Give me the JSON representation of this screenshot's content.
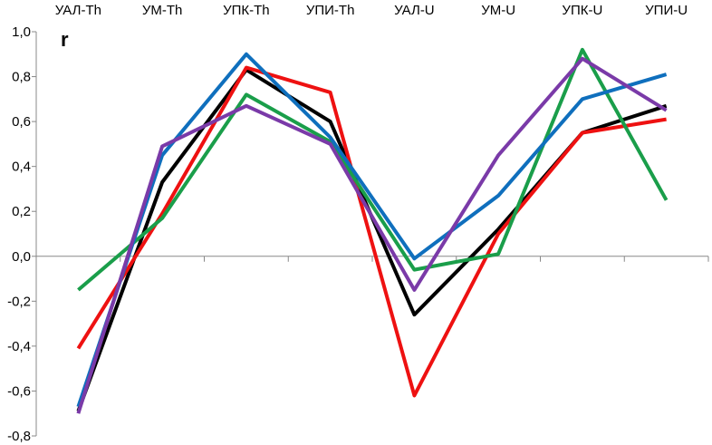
{
  "chart_data": {
    "type": "line",
    "title": "",
    "ylabel": "r",
    "xlabel": "",
    "ylim": [
      -0.8,
      1.0
    ],
    "yticks": [
      1.0,
      0.8,
      0.6,
      0.4,
      0.2,
      0.0,
      -0.2,
      -0.4,
      -0.6,
      -0.8
    ],
    "ytick_labels": [
      "1,0",
      "0,8",
      "0,6",
      "0,4",
      "0,2",
      "0,0",
      "-0,2",
      "-0,4",
      "-0,6",
      "-0,8"
    ],
    "x_axis_position": "top",
    "categories": [
      "УАЛ-Th",
      "УМ-Th",
      "УПК-Th",
      "УПИ-Th",
      "УАЛ-U",
      "УМ-U",
      "УПК-U",
      "УПИ-U"
    ],
    "grid": false,
    "legend": "none",
    "series": [
      {
        "color": "#000000",
        "values": [
          -0.69,
          0.33,
          0.83,
          0.6,
          -0.26,
          0.12,
          0.55,
          0.67
        ]
      },
      {
        "color": "#ee1111",
        "values": [
          -0.41,
          0.19,
          0.84,
          0.73,
          -0.62,
          0.1,
          0.55,
          0.61
        ]
      },
      {
        "color": "#1a9e4a",
        "values": [
          -0.15,
          0.17,
          0.72,
          0.51,
          -0.06,
          0.01,
          0.92,
          0.25
        ]
      },
      {
        "color": "#0f6fbd",
        "values": [
          -0.67,
          0.45,
          0.9,
          0.53,
          -0.01,
          0.27,
          0.7,
          0.81
        ]
      },
      {
        "color": "#7a3aa8",
        "values": [
          -0.7,
          0.49,
          0.67,
          0.5,
          -0.15,
          0.45,
          0.88,
          0.65
        ]
      }
    ]
  }
}
